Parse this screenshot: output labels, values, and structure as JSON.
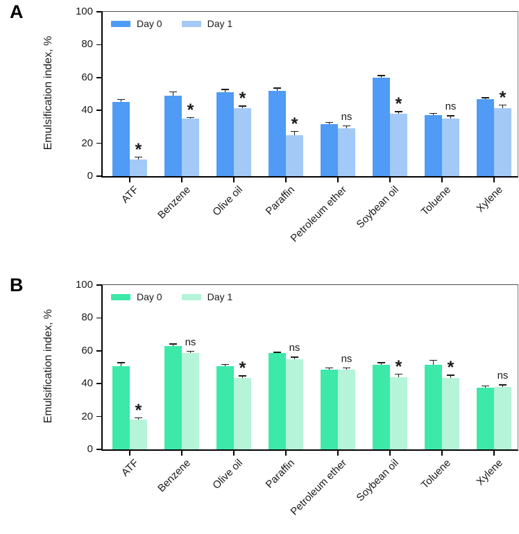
{
  "chart_data": [
    {
      "type": "bar",
      "panel_label": "A",
      "ylabel": "Emulsification index, %",
      "ylim": [
        0,
        100
      ],
      "yticks": [
        0,
        20,
        40,
        60,
        80,
        100
      ],
      "grid": false,
      "legend_position": "top-left-inside",
      "legend": [
        {
          "name": "Day 0",
          "color": "#4F9BF5"
        },
        {
          "name": "Day 1",
          "color": "#A3C9F7"
        }
      ],
      "categories": [
        "ATF",
        "Benzene",
        "Olive oil",
        "Paraffin",
        "Petroleum ether",
        "Soybean oil",
        "Toluene",
        "Xylene"
      ],
      "series": [
        {
          "name": "Day 0",
          "values": [
            45,
            49,
            51,
            52,
            31.5,
            60,
            37,
            47
          ],
          "errors": [
            2,
            2.5,
            2,
            2,
            1.5,
            1.5,
            1.5,
            1
          ]
        },
        {
          "name": "Day 1",
          "values": [
            10,
            35,
            41.5,
            25,
            29,
            38,
            35,
            41.5
          ],
          "errors": [
            2,
            1,
            1.5,
            2.5,
            2,
            1.5,
            2,
            2
          ]
        }
      ],
      "significance": [
        "*",
        "*",
        "*",
        "*",
        "ns",
        "*",
        "ns",
        "*"
      ]
    },
    {
      "type": "bar",
      "panel_label": "B",
      "ylabel": "Emulsification index, %",
      "ylim": [
        0,
        100
      ],
      "yticks": [
        0,
        20,
        40,
        60,
        80,
        100
      ],
      "grid": false,
      "legend_position": "top-left-inside",
      "legend": [
        {
          "name": "Day 0",
          "color": "#3CE9A9"
        },
        {
          "name": "Day 1",
          "color": "#B5F4D8"
        }
      ],
      "categories": [
        "ATF",
        "Benzene",
        "Olive oil",
        "Paraffin",
        "Petroleum ether",
        "Soybean oil",
        "Toluene",
        "Xylene"
      ],
      "series": [
        {
          "name": "Day 0",
          "values": [
            50.5,
            63,
            50.5,
            58.5,
            48.5,
            51.5,
            51.5,
            37.5
          ],
          "errors": [
            2.5,
            1.5,
            1.5,
            1,
            1.5,
            1.5,
            3,
            1.5
          ]
        },
        {
          "name": "Day 1",
          "values": [
            18,
            58.5,
            43.5,
            55,
            48.5,
            44,
            43.5,
            38
          ],
          "errors": [
            1.5,
            1.5,
            1.5,
            1.5,
            1.5,
            2,
            2,
            1.5
          ]
        }
      ],
      "significance": [
        "*",
        "ns",
        "*",
        "ns",
        "ns",
        "*",
        "*",
        "ns"
      ]
    }
  ]
}
